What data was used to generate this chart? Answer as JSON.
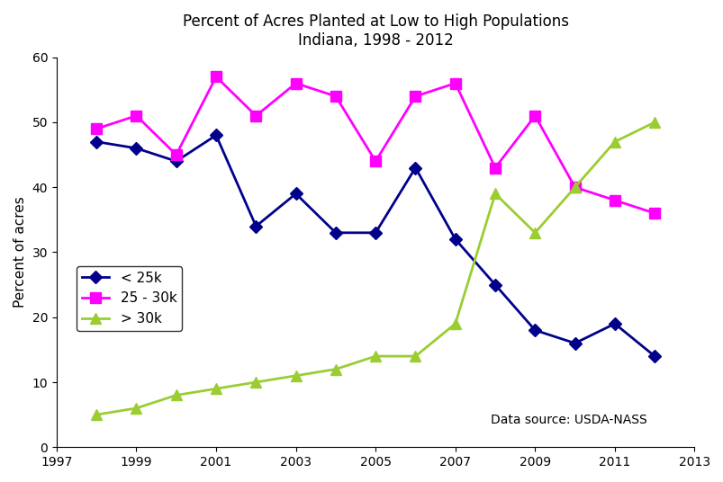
{
  "title_line1": "Percent of Acres Planted at Low to High Populations",
  "title_line2": "Indiana, 1998 - 2012",
  "ylabel": "Percent of acres",
  "annotation": "Data source: USDA-NASS",
  "xlim": [
    1997,
    2013
  ],
  "ylim": [
    0,
    60
  ],
  "xticks": [
    1997,
    1999,
    2001,
    2003,
    2005,
    2007,
    2009,
    2011,
    2013
  ],
  "yticks": [
    0,
    10,
    20,
    30,
    40,
    50,
    60
  ],
  "series": [
    {
      "label": "< 25k",
      "color": "#00008B",
      "marker": "D",
      "markersize": 7,
      "years": [
        1998,
        1999,
        2000,
        2001,
        2002,
        2003,
        2004,
        2005,
        2006,
        2007,
        2008,
        2009,
        2010,
        2011,
        2012
      ],
      "values": [
        47,
        46,
        44,
        48,
        34,
        39,
        33,
        33,
        43,
        32,
        25,
        18,
        16,
        19,
        14
      ]
    },
    {
      "label": "25 - 30k",
      "color": "#FF00FF",
      "marker": "s",
      "markersize": 8,
      "years": [
        1998,
        1999,
        2000,
        2001,
        2002,
        2003,
        2004,
        2005,
        2006,
        2007,
        2008,
        2009,
        2010,
        2011,
        2012
      ],
      "values": [
        49,
        51,
        45,
        57,
        51,
        56,
        54,
        44,
        54,
        56,
        43,
        51,
        40,
        38,
        36
      ]
    },
    {
      "label": "> 30k",
      "color": "#9ACD32",
      "marker": "^",
      "markersize": 8,
      "years": [
        1998,
        1999,
        2000,
        2001,
        2002,
        2003,
        2004,
        2005,
        2006,
        2007,
        2008,
        2009,
        2010,
        2011,
        2012
      ],
      "values": [
        5,
        6,
        8,
        9,
        10,
        11,
        12,
        14,
        14,
        19,
        39,
        33,
        40,
        47,
        50
      ]
    }
  ],
  "background_color": "#ffffff",
  "linewidth": 2,
  "title_fontsize": 12,
  "label_fontsize": 11,
  "tick_fontsize": 10,
  "legend_fontsize": 11
}
